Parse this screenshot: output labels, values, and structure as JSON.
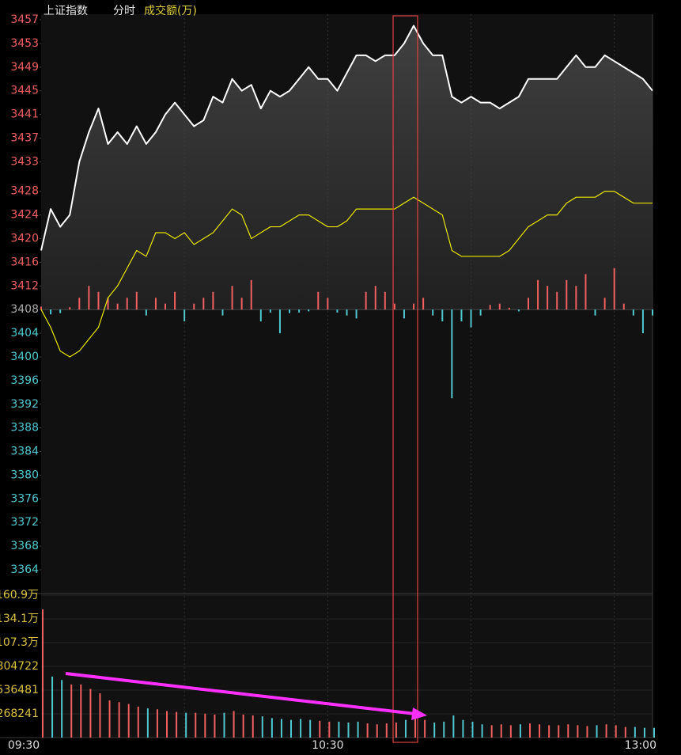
{
  "chart_data": {
    "type": "intraday",
    "header": {
      "name": "上证指数",
      "mode": "分时",
      "volume_label": "成交额(万)"
    },
    "categories": [
      "09:30",
      null,
      null,
      null,
      null,
      null,
      null,
      null,
      null,
      null,
      null,
      null,
      null,
      null,
      null,
      null,
      null,
      null,
      null,
      null,
      null,
      null,
      null,
      null,
      null,
      null,
      null,
      null,
      null,
      null,
      "10:30",
      null,
      null,
      null,
      null,
      null,
      null,
      null,
      null,
      null,
      null,
      null,
      null,
      null,
      null,
      null,
      null,
      null,
      null,
      null,
      null,
      null,
      null,
      null,
      null,
      null,
      null,
      null,
      null,
      null,
      null,
      null,
      null,
      null,
      "13:00"
    ],
    "prev_close": 3408,
    "ylim": [
      3364,
      3457
    ],
    "yticks": [
      3457,
      3453,
      3449,
      3445,
      3441,
      3437,
      3433,
      3428,
      3424,
      3420,
      3416,
      3412,
      3408,
      3404,
      3400,
      3396,
      3392,
      3388,
      3384,
      3380,
      3376,
      3372,
      3368,
      3364
    ],
    "series": [
      {
        "name": "上证指数",
        "color": "#ffffff",
        "values": [
          3418,
          3425,
          3422,
          3424,
          3433,
          3438,
          3442,
          3436,
          3438,
          3436,
          3439,
          3436,
          3438,
          3441,
          3443,
          3441,
          3439,
          3440,
          3444,
          3443,
          3447,
          3445,
          3446,
          3442,
          3445,
          3444,
          3445,
          3447,
          3449,
          3447,
          3447,
          3445,
          3448,
          3451,
          3451,
          3450,
          3451,
          3451,
          3453,
          3456,
          3453,
          3451,
          3451,
          3444,
          3443,
          3444,
          3443,
          3443,
          3442,
          3443,
          3444,
          3447,
          3447,
          3447,
          3447,
          3449,
          3451,
          3449,
          3449,
          3451,
          3450,
          3449,
          3448,
          3447,
          3445
        ]
      },
      {
        "name": "average",
        "color": "#e8e800",
        "values": [
          3408,
          3405,
          3401,
          3400,
          3401,
          3403,
          3405,
          3410,
          3412,
          3415,
          3418,
          3417,
          3421,
          3421,
          3420,
          3421,
          3419,
          3420,
          3421,
          3423,
          3425,
          3424,
          3420,
          3421,
          3422,
          3422,
          3423,
          3424,
          3424,
          3423,
          3422,
          3422,
          3423,
          3425,
          3425,
          3425,
          3425,
          3425,
          3426,
          3427,
          3426,
          3425,
          3424,
          3418,
          3417,
          3417,
          3417,
          3417,
          3417,
          3418,
          3420,
          3422,
          3423,
          3424,
          3424,
          3426,
          3427,
          3427,
          3427,
          3428,
          3428,
          3427,
          3426,
          3426,
          3426
        ]
      }
    ],
    "bars": [
      0.5,
      -0.8,
      -0.6,
      0.4,
      2,
      4,
      3,
      2,
      1,
      2,
      3,
      -1,
      2,
      1,
      3,
      -2,
      1,
      2,
      3,
      -1,
      4,
      2,
      5,
      -2,
      -0.5,
      -4,
      -0.6,
      -0.5,
      -0.3,
      3,
      2,
      -0.5,
      -1,
      -1.5,
      3,
      4,
      3,
      1,
      -1.5,
      1,
      2,
      -1,
      -2,
      -15,
      -2,
      -3,
      -1,
      0.8,
      1,
      0.3,
      -0.3,
      2,
      5,
      4,
      3,
      5,
      4,
      6,
      -1,
      2,
      7,
      1,
      -1,
      -4,
      -1
    ],
    "up_color": "#f06060",
    "down_color": "#50c8d0",
    "volume": [
      1450000,
      690000,
      650000,
      600000,
      600000,
      550000,
      500000,
      420000,
      400000,
      380000,
      350000,
      330000,
      320000,
      300000,
      290000,
      280000,
      280000,
      270000,
      260000,
      280000,
      300000,
      260000,
      250000,
      240000,
      220000,
      210000,
      200000,
      210000,
      200000,
      190000,
      180000,
      180000,
      170000,
      180000,
      160000,
      150000,
      160000,
      170000,
      200000,
      250000,
      200000,
      170000,
      180000,
      250000,
      200000,
      180000,
      150000,
      140000,
      150000,
      140000,
      150000,
      160000,
      150000,
      140000,
      140000,
      150000,
      140000,
      130000,
      140000,
      150000,
      140000,
      120000,
      120000,
      110000,
      110000
    ],
    "vlim": [
      0,
      1609446
    ],
    "vticks": [
      {
        "value": 1609446,
        "label": "160.9万"
      },
      {
        "value": 1341205,
        "label": "134.1万"
      },
      {
        "value": 1072964,
        "label": "107.3万"
      },
      804722,
      536481,
      268241
    ]
  }
}
